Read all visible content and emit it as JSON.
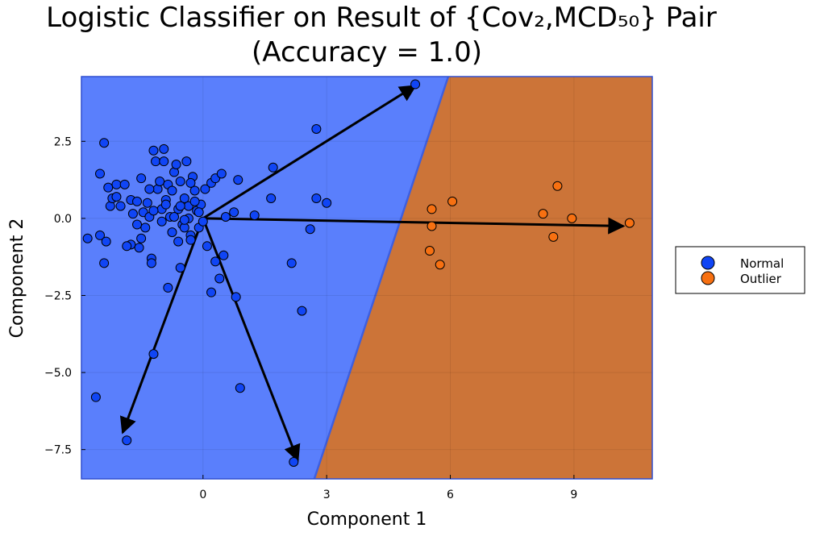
{
  "chart_data": {
    "type": "scatter",
    "title": "Logistic Classifier on Result of {Cov₂,MCD₅₀} Pair",
    "subtitle": "(Accuracy = 1.0)",
    "xlabel": "Component 1",
    "ylabel": "Component 2",
    "xlim": [
      -2.95,
      10.9
    ],
    "ylim": [
      -8.45,
      4.6
    ],
    "xticks": [
      0,
      3,
      6,
      9
    ],
    "xtick_labels": [
      "0",
      "3",
      "6",
      "9"
    ],
    "yticks": [
      2.5,
      0.0,
      -2.5,
      -5.0,
      -7.5
    ],
    "ytick_labels": [
      "2.5",
      "0.0",
      "−2.5",
      "−5.0",
      "−7.5"
    ],
    "grid": true,
    "legend_position": "right",
    "decision_boundary": {
      "line_points": [
        [
          2.7,
          -8.45
        ],
        [
          5.95,
          4.6
        ]
      ],
      "regions": [
        {
          "name": "Normal",
          "color": "#5a7ffc"
        },
        {
          "name": "Outlier",
          "color": "#cc7438"
        }
      ]
    },
    "arrows": [
      {
        "to": [
          5.15,
          4.3
        ]
      },
      {
        "to": [
          10.2,
          -0.25
        ]
      },
      {
        "to": [
          -1.95,
          -6.95
        ]
      },
      {
        "to": [
          2.3,
          -7.85
        ]
      }
    ],
    "series": [
      {
        "name": "Normal",
        "color": "#1045f5",
        "points": [
          [
            -2.8,
            -0.65
          ],
          [
            -2.5,
            -0.55
          ],
          [
            -2.4,
            2.45
          ],
          [
            -2.35,
            -0.75
          ],
          [
            -2.25,
            0.4
          ],
          [
            -2.2,
            0.65
          ],
          [
            -2.1,
            1.1
          ],
          [
            -2.3,
            1.0
          ],
          [
            -2.4,
            -1.45
          ],
          [
            -2.5,
            1.45
          ],
          [
            -2.0,
            0.4
          ],
          [
            -1.9,
            1.1
          ],
          [
            -1.75,
            0.6
          ],
          [
            -1.7,
            0.15
          ],
          [
            -1.6,
            0.55
          ],
          [
            -1.5,
            1.3
          ],
          [
            -1.45,
            0.2
          ],
          [
            -1.4,
            -0.3
          ],
          [
            -1.35,
            0.5
          ],
          [
            -1.3,
            0.05
          ],
          [
            -1.2,
            2.2
          ],
          [
            -1.15,
            1.85
          ],
          [
            -1.1,
            0.95
          ],
          [
            -1.05,
            1.2
          ],
          [
            -1.0,
            0.3
          ],
          [
            -0.95,
            2.25
          ],
          [
            -0.9,
            0.6
          ],
          [
            -0.85,
            1.1
          ],
          [
            -0.8,
            0.05
          ],
          [
            -0.75,
            0.9
          ],
          [
            -0.7,
            1.5
          ],
          [
            -0.65,
            1.75
          ],
          [
            -0.6,
            0.3
          ],
          [
            -0.55,
            1.2
          ],
          [
            -0.5,
            -0.2
          ],
          [
            -0.45,
            0.65
          ],
          [
            -0.4,
            1.85
          ],
          [
            -0.35,
            0.4
          ],
          [
            -0.3,
            -0.55
          ],
          [
            -0.25,
            1.35
          ],
          [
            -0.2,
            0.9
          ],
          [
            -0.15,
            0.25
          ],
          [
            -0.1,
            -0.3
          ],
          [
            -0.05,
            0.45
          ],
          [
            0.0,
            -0.1
          ],
          [
            0.05,
            0.95
          ],
          [
            0.1,
            -0.9
          ],
          [
            0.2,
            1.15
          ],
          [
            0.3,
            1.3
          ],
          [
            0.45,
            1.45
          ],
          [
            0.5,
            -1.2
          ],
          [
            0.55,
            0.05
          ],
          [
            0.75,
            0.2
          ],
          [
            0.85,
            1.25
          ],
          [
            1.25,
            0.1
          ],
          [
            1.65,
            0.65
          ],
          [
            1.7,
            1.65
          ],
          [
            2.75,
            0.65
          ],
          [
            3.0,
            0.5
          ],
          [
            2.75,
            2.9
          ],
          [
            2.6,
            -0.35
          ],
          [
            2.15,
            -1.45
          ],
          [
            2.4,
            -3.0
          ],
          [
            0.8,
            -2.55
          ],
          [
            0.4,
            -1.95
          ],
          [
            0.3,
            -1.4
          ],
          [
            0.2,
            -2.4
          ],
          [
            -0.85,
            -2.25
          ],
          [
            -0.55,
            -1.6
          ],
          [
            -1.25,
            -1.3
          ],
          [
            -1.25,
            -1.45
          ],
          [
            -1.2,
            -4.4
          ],
          [
            -2.6,
            -5.8
          ],
          [
            -1.85,
            -7.2
          ],
          [
            0.9,
            -5.5
          ],
          [
            2.2,
            -7.9
          ],
          [
            5.15,
            4.35
          ],
          [
            -1.75,
            -0.85
          ],
          [
            -1.85,
            -0.9
          ],
          [
            -1.5,
            -0.65
          ],
          [
            -2.1,
            0.7
          ],
          [
            -0.95,
            1.85
          ],
          [
            -0.75,
            -0.45
          ],
          [
            -0.6,
            -0.75
          ],
          [
            -0.45,
            -0.3
          ],
          [
            -0.35,
            0.0
          ],
          [
            -0.3,
            1.15
          ],
          [
            -0.2,
            0.55
          ],
          [
            -0.1,
            0.2
          ],
          [
            -1.6,
            -0.2
          ],
          [
            -1.55,
            -0.95
          ],
          [
            -1.3,
            0.95
          ],
          [
            -1.2,
            0.25
          ],
          [
            -1.0,
            -0.1
          ],
          [
            -0.9,
            0.45
          ],
          [
            -0.7,
            0.05
          ],
          [
            -0.55,
            0.4
          ],
          [
            -0.45,
            -0.05
          ],
          [
            -0.3,
            -0.7
          ]
        ]
      },
      {
        "name": "Outlier",
        "color": "#f77011",
        "points": [
          [
            5.55,
            0.3
          ],
          [
            5.55,
            -0.25
          ],
          [
            6.05,
            0.55
          ],
          [
            5.5,
            -1.05
          ],
          [
            5.75,
            -1.5
          ],
          [
            8.25,
            0.15
          ],
          [
            8.6,
            1.05
          ],
          [
            8.5,
            -0.6
          ],
          [
            8.95,
            0.0
          ],
          [
            10.35,
            -0.15
          ]
        ]
      }
    ]
  }
}
